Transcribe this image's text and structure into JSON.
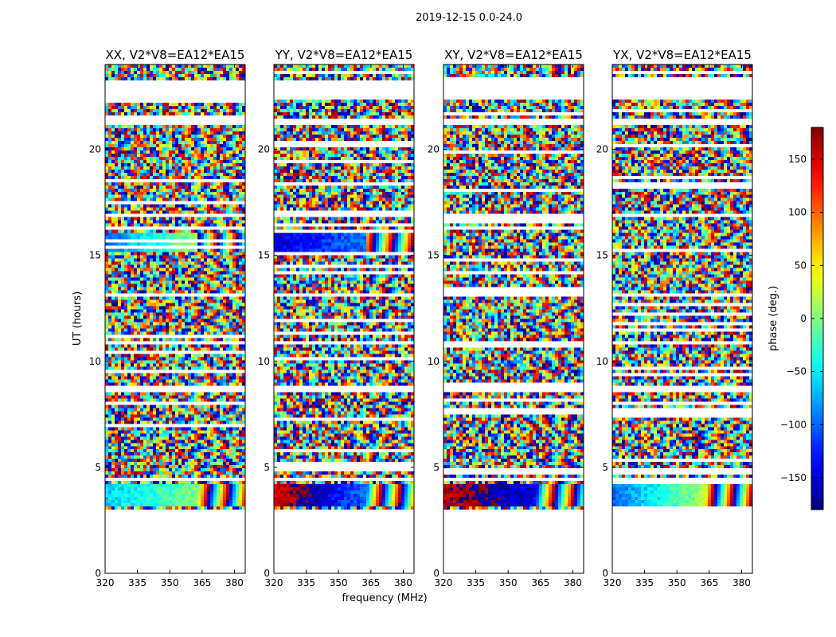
{
  "chart_data": {
    "type": "heatmap",
    "suptitle": "2019-12-15 0.0-24.0",
    "xlabel": "frequency (MHz)",
    "ylabel": "UT (hours)",
    "xlim": [
      320,
      385
    ],
    "ylim": [
      0,
      24
    ],
    "xticks": [
      320,
      335,
      350,
      365,
      380
    ],
    "yticks": [
      0,
      5,
      10,
      15,
      20
    ],
    "panels": [
      {
        "title": "XX, V2*V8=EA12*EA15",
        "polarization": "XX",
        "coherent_bands": [
          [
            15.1,
            16.0,
            -100,
            "low",
            "high"
          ],
          [
            3.2,
            4.2,
            -60,
            "mid",
            "high"
          ]
        ]
      },
      {
        "title": "YY, V2*V8=EA12*EA15",
        "polarization": "YY",
        "coherent_bands": [
          [
            15.1,
            16.0,
            -150,
            "low",
            "mid"
          ],
          [
            3.2,
            4.2,
            150,
            "low",
            "high"
          ]
        ]
      },
      {
        "title": "XY, V2*V8=EA12*EA15",
        "polarization": "XY",
        "coherent_bands": [
          [
            3.2,
            4.2,
            160,
            "low",
            "mid"
          ]
        ]
      },
      {
        "title": "YX, V2*V8=EA12*EA15",
        "polarization": "YX",
        "coherent_bands": [
          [
            3.2,
            4.2,
            -100,
            "low",
            "high"
          ]
        ]
      }
    ],
    "flagged_hours": [
      [
        0,
        3.0
      ],
      [
        4.3,
        4.5
      ],
      [
        8.6,
        8.8
      ],
      [
        10.8,
        11.0
      ],
      [
        13.0,
        13.2
      ],
      [
        16.8,
        17.0
      ],
      [
        21.2,
        21.5
      ],
      [
        22.3,
        23.2
      ]
    ],
    "colorbar": {
      "label": "phase (deg.)",
      "vmin": -180,
      "vmax": 180,
      "ticks": [
        -150,
        -100,
        -50,
        0,
        50,
        100,
        150
      ],
      "tick_labels": [
        "−150",
        "−100",
        "−50",
        "0",
        "50",
        "100",
        "150"
      ],
      "colormap": "jet"
    }
  }
}
